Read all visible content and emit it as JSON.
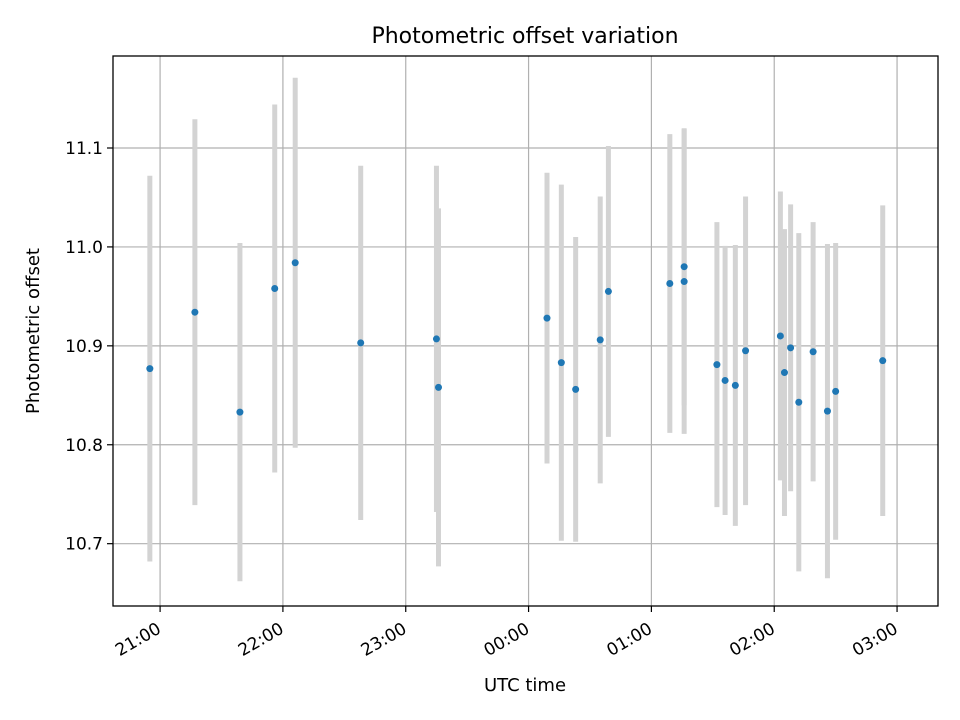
{
  "chart_data": {
    "type": "scatter",
    "title": "Photometric offset variation",
    "xlabel": "UTC time",
    "ylabel": "Photometric offset",
    "xlim": [
      "20:37",
      "03:20"
    ],
    "ylim": [
      10.637,
      11.193
    ],
    "xticks": [
      {
        "label": "21:00",
        "value": "21:00"
      },
      {
        "label": "22:00",
        "value": "22:00"
      },
      {
        "label": "23:00",
        "value": "23:00"
      },
      {
        "label": "00:00",
        "value": "00:00"
      },
      {
        "label": "01:00",
        "value": "01:00"
      },
      {
        "label": "02:00",
        "value": "02:00"
      },
      {
        "label": "03:00",
        "value": "03:00"
      }
    ],
    "yticks": [
      10.7,
      10.8,
      10.9,
      11.0,
      11.1
    ],
    "ytick_labels": [
      "10.7",
      "10.8",
      "10.9",
      "11.0",
      "11.1"
    ],
    "grid": true,
    "colors": {
      "point": "#1f77b4",
      "errorbar": "#d3d3d3",
      "grid": "#b0b0b0"
    },
    "series": [
      {
        "points": [
          {
            "x": "20:55",
            "y": 10.877,
            "err": 0.195
          },
          {
            "x": "21:17",
            "y": 10.934,
            "err": 0.195
          },
          {
            "x": "21:39",
            "y": 10.833,
            "err": 0.171
          },
          {
            "x": "21:56",
            "y": 10.958,
            "err": 0.186
          },
          {
            "x": "22:06",
            "y": 10.984,
            "err": 0.187
          },
          {
            "x": "22:38",
            "y": 10.903,
            "err": 0.179
          },
          {
            "x": "23:15",
            "y": 10.907,
            "err": 0.175
          },
          {
            "x": "23:16",
            "y": 10.858,
            "err": 0.181
          },
          {
            "x": "00:09",
            "y": 10.928,
            "err": 0.147
          },
          {
            "x": "00:16",
            "y": 10.883,
            "err": 0.18
          },
          {
            "x": "00:23",
            "y": 10.856,
            "err": 0.154
          },
          {
            "x": "00:35",
            "y": 10.906,
            "err": 0.145
          },
          {
            "x": "00:39",
            "y": 10.955,
            "err": 0.147
          },
          {
            "x": "01:09",
            "y": 10.963,
            "err": 0.151
          },
          {
            "x": "01:16",
            "y": 10.98,
            "err": 0.14
          },
          {
            "x": "01:16",
            "y": 10.965,
            "err": 0.154
          },
          {
            "x": "01:32",
            "y": 10.881,
            "err": 0.144
          },
          {
            "x": "01:36",
            "y": 10.865,
            "err": 0.136
          },
          {
            "x": "01:41",
            "y": 10.86,
            "err": 0.142
          },
          {
            "x": "01:46",
            "y": 10.895,
            "err": 0.156
          },
          {
            "x": "02:03",
            "y": 10.91,
            "err": 0.146
          },
          {
            "x": "02:05",
            "y": 10.873,
            "err": 0.145
          },
          {
            "x": "02:08",
            "y": 10.898,
            "err": 0.145
          },
          {
            "x": "02:12",
            "y": 10.843,
            "err": 0.171
          },
          {
            "x": "02:19",
            "y": 10.894,
            "err": 0.131
          },
          {
            "x": "02:26",
            "y": 10.834,
            "err": 0.169
          },
          {
            "x": "02:30",
            "y": 10.854,
            "err": 0.15
          },
          {
            "x": "02:53",
            "y": 10.885,
            "err": 0.157
          }
        ]
      }
    ]
  }
}
